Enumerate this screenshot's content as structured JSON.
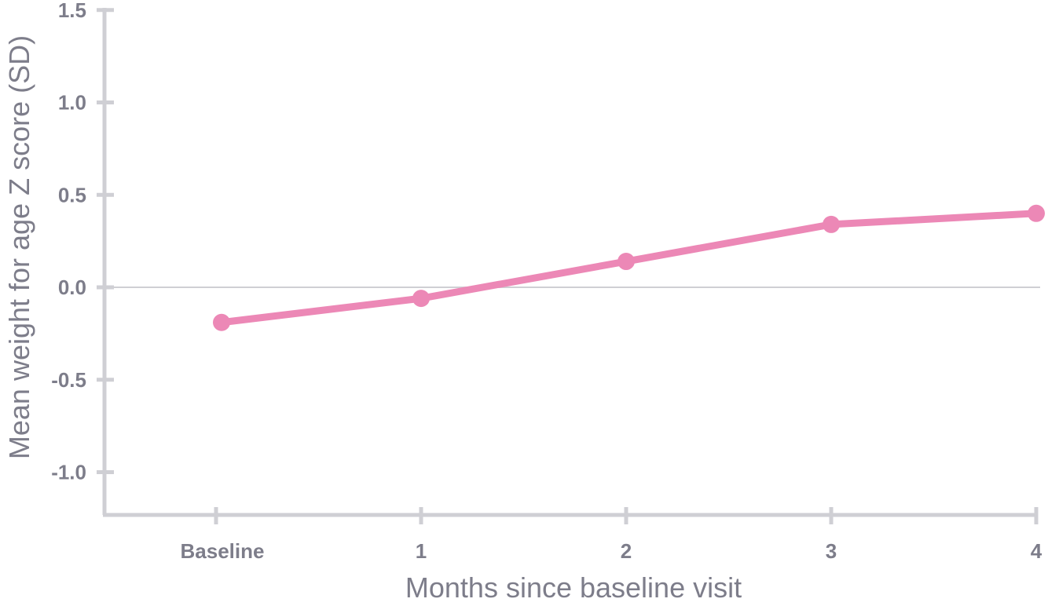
{
  "chart_data": {
    "type": "line",
    "categories": [
      "Baseline",
      "1",
      "2",
      "3",
      "4"
    ],
    "series": [
      {
        "values": [
          -0.19,
          -0.06,
          0.14,
          0.34,
          0.4
        ]
      }
    ],
    "xlabel": "Months since baseline visit",
    "ylabel": "Mean weight for age Z score (SD)",
    "ylim": [
      -1.23,
      1.5
    ],
    "yticks": [
      "1.5",
      "1.0",
      "0.5",
      "0.0",
      "-0.5",
      "-1.0"
    ],
    "ytick_values": [
      1.5,
      1.0,
      0.5,
      0.0,
      -0.5,
      -1.0
    ],
    "zero_line": true,
    "grid": false,
    "colors": {
      "line": "#ec88b6",
      "axis": "#cfcfd4",
      "zero_line": "#cfcfd4",
      "text": "#7d7d8a"
    }
  }
}
